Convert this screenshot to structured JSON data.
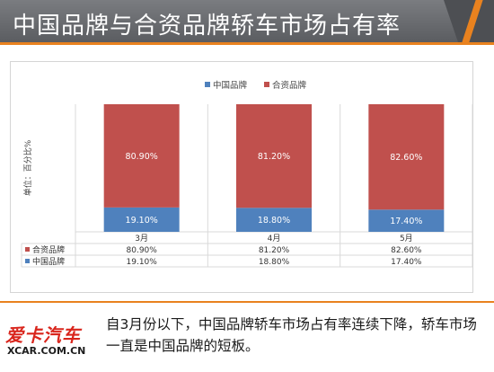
{
  "header": {
    "title": "中国品牌与合资品牌轿车市场占有率"
  },
  "chart_data": {
    "type": "bar",
    "stacked": true,
    "categories": [
      "3月",
      "4月",
      "5月"
    ],
    "series": [
      {
        "name": "中国品牌",
        "values": [
          19.1,
          18.8,
          17.4
        ],
        "labels": [
          "19.10%",
          "18.80%",
          "17.40%"
        ],
        "color": "#4f81bd"
      },
      {
        "name": "合资品牌",
        "values": [
          80.9,
          81.2,
          82.6
        ],
        "labels": [
          "80.90%",
          "81.20%",
          "82.60%"
        ],
        "color": "#c0504d"
      }
    ],
    "ylabel": "单位：百分比%",
    "ylim": [
      0,
      100
    ],
    "legend_position": "top",
    "data_table": true,
    "grid": true
  },
  "footer": {
    "caption": "自3月份以下，中国品牌轿车市场占有率连续下降，轿车市场一直是中国品牌的短板。",
    "logo_main": "爱卡汽车",
    "logo_sub": "XCAR.COM.CN"
  }
}
